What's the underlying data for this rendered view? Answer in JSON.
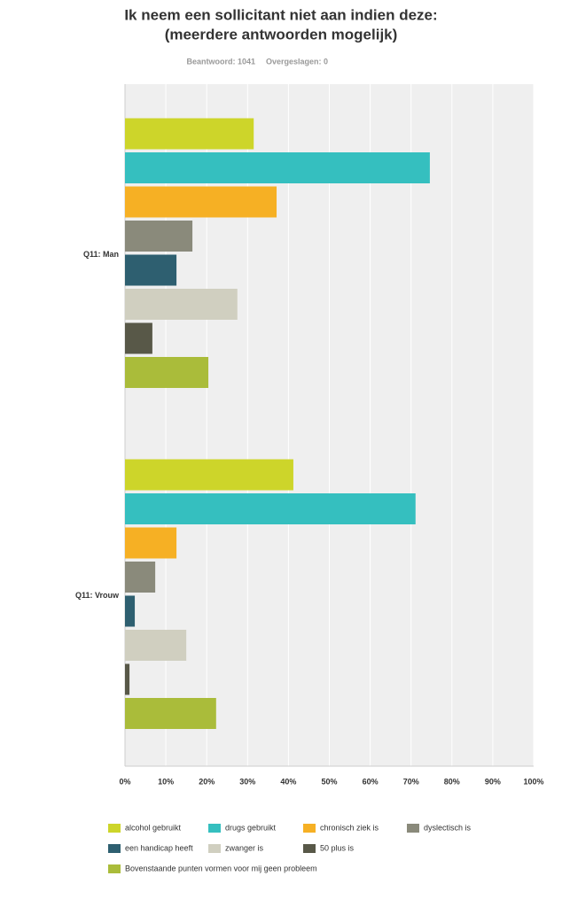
{
  "chart_data": {
    "type": "bar",
    "orientation": "horizontal",
    "title": "Ik neem een sollicitant niet aan indien deze:",
    "subtitle": "(meerdere antwoorden mogelijk)",
    "answered": "Beantwoord: 1041",
    "skipped": "Overgeslagen: 0",
    "categories": [
      "Q11: Man",
      "Q11: Vrouw"
    ],
    "series": [
      {
        "name": "alcohol gebruikt",
        "color": "#cdd52a",
        "values": [
          31.5,
          41.2
        ]
      },
      {
        "name": "drugs gebruikt",
        "color": "#35bfbf",
        "values": [
          74.6,
          71.1
        ]
      },
      {
        "name": "chronisch ziek is",
        "color": "#f6b024",
        "values": [
          37.1,
          12.6
        ]
      },
      {
        "name": "dyslectisch is",
        "color": "#8a8a7b",
        "values": [
          16.5,
          7.4
        ]
      },
      {
        "name": "een handicap heeft",
        "color": "#2e5f70",
        "values": [
          12.6,
          2.4
        ]
      },
      {
        "name": "zwanger is",
        "color": "#d0cfc0",
        "values": [
          27.5,
          15.0
        ]
      },
      {
        "name": "50 plus is",
        "color": "#585848",
        "values": [
          6.7,
          1.1
        ]
      },
      {
        "name": "Bovenstaande punten vormen voor mij geen probleem",
        "color": "#aabc3a",
        "values": [
          20.4,
          22.3
        ]
      }
    ],
    "xlim": [
      0,
      100
    ],
    "xticks": [
      {
        "value": 0,
        "label": "0%"
      },
      {
        "value": 10,
        "label": "10%"
      },
      {
        "value": 20,
        "label": "20%"
      },
      {
        "value": 30,
        "label": "30%"
      },
      {
        "value": 40,
        "label": "40%"
      },
      {
        "value": 50,
        "label": "50%"
      },
      {
        "value": 60,
        "label": "60%"
      },
      {
        "value": 70,
        "label": "70%"
      },
      {
        "value": 80,
        "label": "80%"
      },
      {
        "value": 90,
        "label": "90%"
      },
      {
        "value": 100,
        "label": "100%"
      }
    ],
    "grid": true,
    "legend": "bottom"
  }
}
